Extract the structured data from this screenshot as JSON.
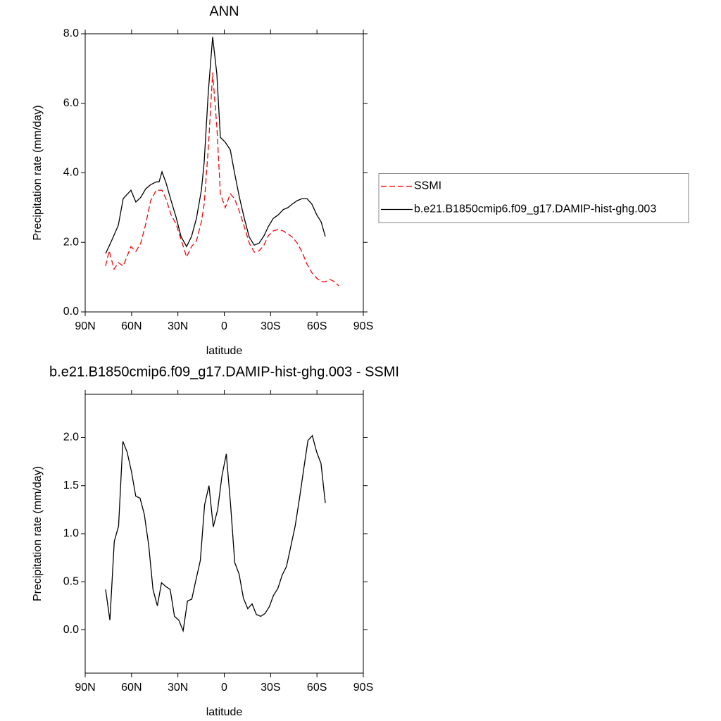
{
  "chart_data": [
    {
      "type": "line",
      "title": "ANN",
      "xlabel": "latitude",
      "ylabel": "Precipitation rate (mm/day)",
      "xlim": [
        90,
        -90
      ],
      "xticks": [
        {
          "value": 90,
          "label": "90N"
        },
        {
          "value": 60,
          "label": "60N"
        },
        {
          "value": 30,
          "label": "30N"
        },
        0,
        {
          "value": -30,
          "label": "30S"
        },
        {
          "value": -60,
          "label": "60S"
        },
        {
          "value": -90,
          "label": "90S"
        }
      ],
      "ylim": [
        0,
        8
      ],
      "yticks": [
        {
          "value": 0,
          "label": "0.0"
        },
        {
          "value": 2,
          "label": "2.0"
        },
        {
          "value": 4,
          "label": "4.0"
        },
        {
          "value": 6,
          "label": "6.0"
        },
        {
          "value": 8,
          "label": "8.0"
        }
      ],
      "legend": "right",
      "series": [
        {
          "name": "SSMI",
          "color": "#ff0000",
          "dashed": true,
          "x": [
            76.8,
            74.5,
            71.3,
            68.6,
            65.4,
            60.4,
            57.2,
            54.0,
            50.8,
            47.6,
            44.0,
            40.3,
            37.6,
            34.4,
            31.2,
            28.0,
            24.4,
            21.2,
            18.0,
            14.8,
            13.0,
            10.3,
            7.5,
            4.8,
            2.5,
            -0.7,
            -3.9,
            -6.6,
            -9.8,
            -13.0,
            -16.2,
            -19.4,
            -22.6,
            -25.7,
            -28.5,
            -31.7,
            -34.9,
            -38.1,
            -41.2,
            -44.0,
            -47.2,
            -50.4,
            -53.5,
            -56.7,
            -59.9,
            -62.7,
            -65.4,
            -68.6,
            -71.3,
            -74.1
          ],
          "values": [
            1.32,
            1.76,
            1.23,
            1.42,
            1.32,
            1.88,
            1.74,
            1.98,
            2.53,
            3.2,
            3.5,
            3.5,
            3.24,
            2.79,
            2.53,
            2.09,
            1.58,
            1.88,
            2.04,
            2.59,
            3.1,
            4.72,
            6.88,
            5.32,
            3.4,
            3.0,
            3.4,
            3.26,
            2.89,
            2.45,
            1.98,
            1.72,
            1.76,
            1.92,
            2.19,
            2.33,
            2.37,
            2.33,
            2.25,
            2.15,
            1.98,
            1.72,
            1.38,
            1.13,
            0.97,
            0.87,
            0.87,
            0.93,
            0.87,
            0.75
          ]
        },
        {
          "name": "b.e21.B1850cmip6.f09_g17.DAMIP-hist-ghg.003",
          "color": "#000000",
          "dashed": false,
          "x": [
            76.8,
            73.6,
            68.6,
            65.4,
            60.4,
            57.2,
            54.0,
            50.8,
            47.6,
            44.0,
            42.2,
            40.3,
            37.6,
            34.4,
            31.2,
            28.0,
            24.4,
            21.2,
            18.0,
            14.8,
            13.0,
            10.3,
            7.5,
            4.8,
            2.5,
            -0.7,
            -3.9,
            -6.6,
            -9.8,
            -13.0,
            -16.2,
            -19.4,
            -22.6,
            -25.7,
            -28.5,
            -31.7,
            -34.9,
            -38.1,
            -41.2,
            -44.0,
            -47.2,
            -50.4,
            -53.5,
            -56.7,
            -59.9,
            -62.7,
            -65.4
          ],
          "values": [
            1.68,
            1.98,
            2.49,
            3.26,
            3.5,
            3.16,
            3.3,
            3.54,
            3.66,
            3.74,
            3.74,
            4.03,
            3.7,
            3.2,
            2.73,
            2.17,
            1.88,
            2.17,
            2.69,
            3.5,
            4.31,
            6.34,
            7.91,
            6.84,
            5.02,
            4.88,
            4.66,
            4.01,
            3.3,
            2.69,
            2.15,
            1.92,
            1.98,
            2.19,
            2.45,
            2.69,
            2.79,
            2.94,
            3.0,
            3.1,
            3.2,
            3.26,
            3.26,
            3.1,
            2.79,
            2.59,
            2.17
          ]
        }
      ]
    },
    {
      "type": "line",
      "title": "b.e21.B1850cmip6.f09_g17.DAMIP-hist-ghg.003 - SSMI",
      "xlabel": "latitude",
      "ylabel": "Precipitation rate (mm/day)",
      "xlim": [
        90,
        -90
      ],
      "xticks": [
        {
          "value": 90,
          "label": "90N"
        },
        {
          "value": 60,
          "label": "60N"
        },
        {
          "value": 30,
          "label": "30N"
        },
        0,
        {
          "value": -30,
          "label": "30S"
        },
        {
          "value": -60,
          "label": "60S"
        },
        {
          "value": -90,
          "label": "90S"
        }
      ],
      "ylim": [
        -0.45,
        2.45
      ],
      "yticks": [
        {
          "value": 0,
          "label": "0.0"
        },
        0.5,
        {
          "value": 1,
          "label": "1.0"
        },
        1.5,
        {
          "value": 2,
          "label": "2.0"
        }
      ],
      "series": [
        {
          "color": "#000000",
          "dashed": false,
          "x": [
            76.8,
            74.0,
            71.2,
            68.4,
            65.6,
            62.9,
            60.1,
            57.3,
            54.5,
            51.7,
            48.9,
            46.1,
            43.3,
            40.6,
            37.8,
            35.0,
            32.2,
            29.4,
            26.6,
            23.8,
            21.0,
            18.3,
            15.5,
            12.7,
            9.9,
            7.1,
            4.3,
            1.5,
            -1.3,
            -4.1,
            -6.8,
            -9.6,
            -12.4,
            -15.2,
            -18.0,
            -20.8,
            -23.6,
            -26.4,
            -29.1,
            -31.9,
            -34.7,
            -37.5,
            -40.3,
            -43.1,
            -45.9,
            -48.7,
            -51.4,
            -54.2,
            -57.0,
            -59.8,
            -62.6,
            -65.4
          ],
          "values": [
            0.42,
            0.1,
            0.92,
            1.08,
            1.96,
            1.85,
            1.65,
            1.39,
            1.37,
            1.2,
            0.88,
            0.42,
            0.25,
            0.49,
            0.45,
            0.42,
            0.14,
            0.1,
            -0.01,
            0.3,
            0.32,
            0.52,
            0.72,
            1.3,
            1.5,
            1.07,
            1.25,
            1.6,
            1.83,
            1.3,
            0.7,
            0.58,
            0.33,
            0.22,
            0.27,
            0.16,
            0.14,
            0.17,
            0.24,
            0.36,
            0.43,
            0.57,
            0.66,
            0.87,
            1.08,
            1.37,
            1.67,
            1.97,
            2.02,
            1.85,
            1.73,
            1.32
          ]
        }
      ]
    }
  ]
}
